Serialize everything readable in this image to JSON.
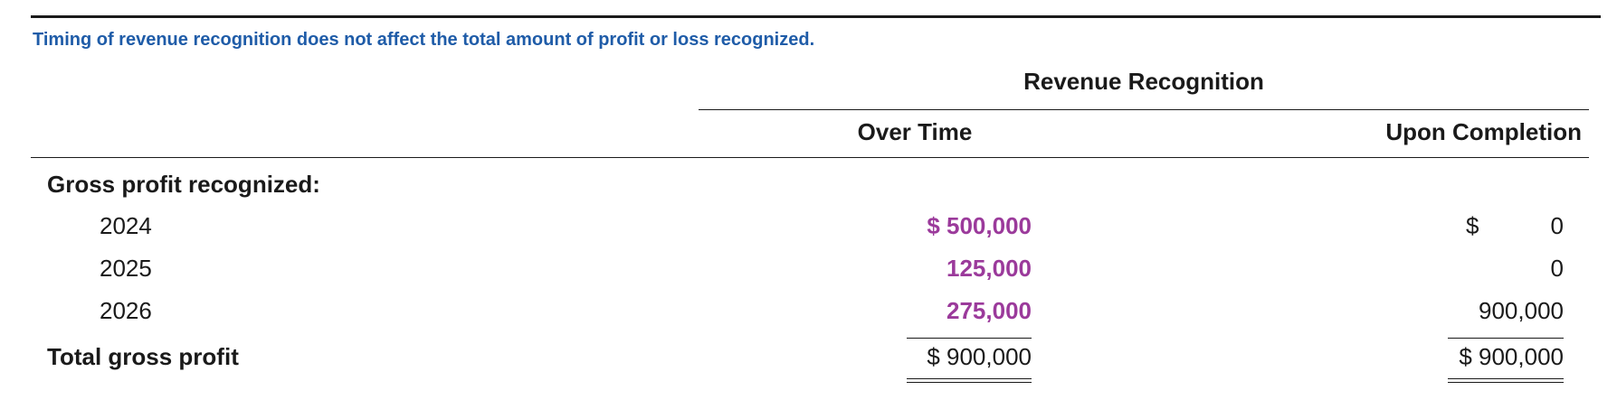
{
  "caption": "Timing of revenue recognition does not affect the total amount of profit or loss recognized.",
  "group_header": "Revenue Recognition",
  "columns": {
    "over_time": "Over Time",
    "upon_completion": "Upon Completion"
  },
  "section_label": "Gross profit recognized:",
  "rows": [
    {
      "year": "2024",
      "over_time": "$ 500,000",
      "upon_currency": "$",
      "upon_completion": "0"
    },
    {
      "year": "2025",
      "over_time": "125,000",
      "upon_completion": "0"
    },
    {
      "year": "2026",
      "over_time": "275,000",
      "upon_completion": "900,000"
    }
  ],
  "total": {
    "label": "Total gross profit",
    "over_time": "$ 900,000",
    "upon_completion": "$ 900,000"
  },
  "colors": {
    "caption": "#1f5ca8",
    "highlight": "#9b3a9b",
    "rule": "#1a1a1a"
  }
}
